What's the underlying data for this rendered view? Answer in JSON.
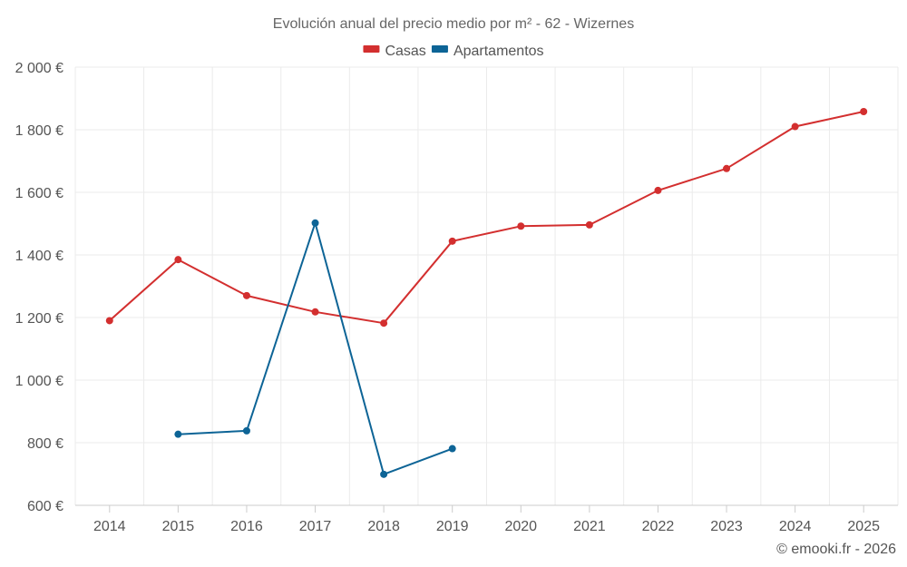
{
  "chart_data": {
    "type": "line",
    "title": "Evolución anual del precio medio por m² - 62 - Wizernes",
    "categories": [
      "2014",
      "2015",
      "2016",
      "2017",
      "2018",
      "2019",
      "2020",
      "2021",
      "2022",
      "2023",
      "2024",
      "2025"
    ],
    "y_ticks": [
      "600 €",
      "800 €",
      "1 000 €",
      "1 200 €",
      "1 400 €",
      "1 600 €",
      "1 800 €",
      "2 000 €"
    ],
    "y_tick_values": [
      600,
      800,
      1000,
      1200,
      1400,
      1600,
      1800,
      2000
    ],
    "ylim": [
      600,
      2000
    ],
    "grid": true,
    "legend_position": "top-center",
    "series": [
      {
        "name": "Casas",
        "color": "#d32f2f",
        "values": [
          1190,
          1385,
          1270,
          1218,
          1182,
          1444,
          1492,
          1496,
          1606,
          1676,
          1810,
          1858
        ]
      },
      {
        "name": "Apartamentos",
        "color": "#0d6496",
        "values": [
          null,
          827,
          838,
          1502,
          699,
          781,
          null,
          null,
          null,
          null,
          null,
          null
        ]
      }
    ]
  },
  "credit": "© emooki.fr - 2026"
}
